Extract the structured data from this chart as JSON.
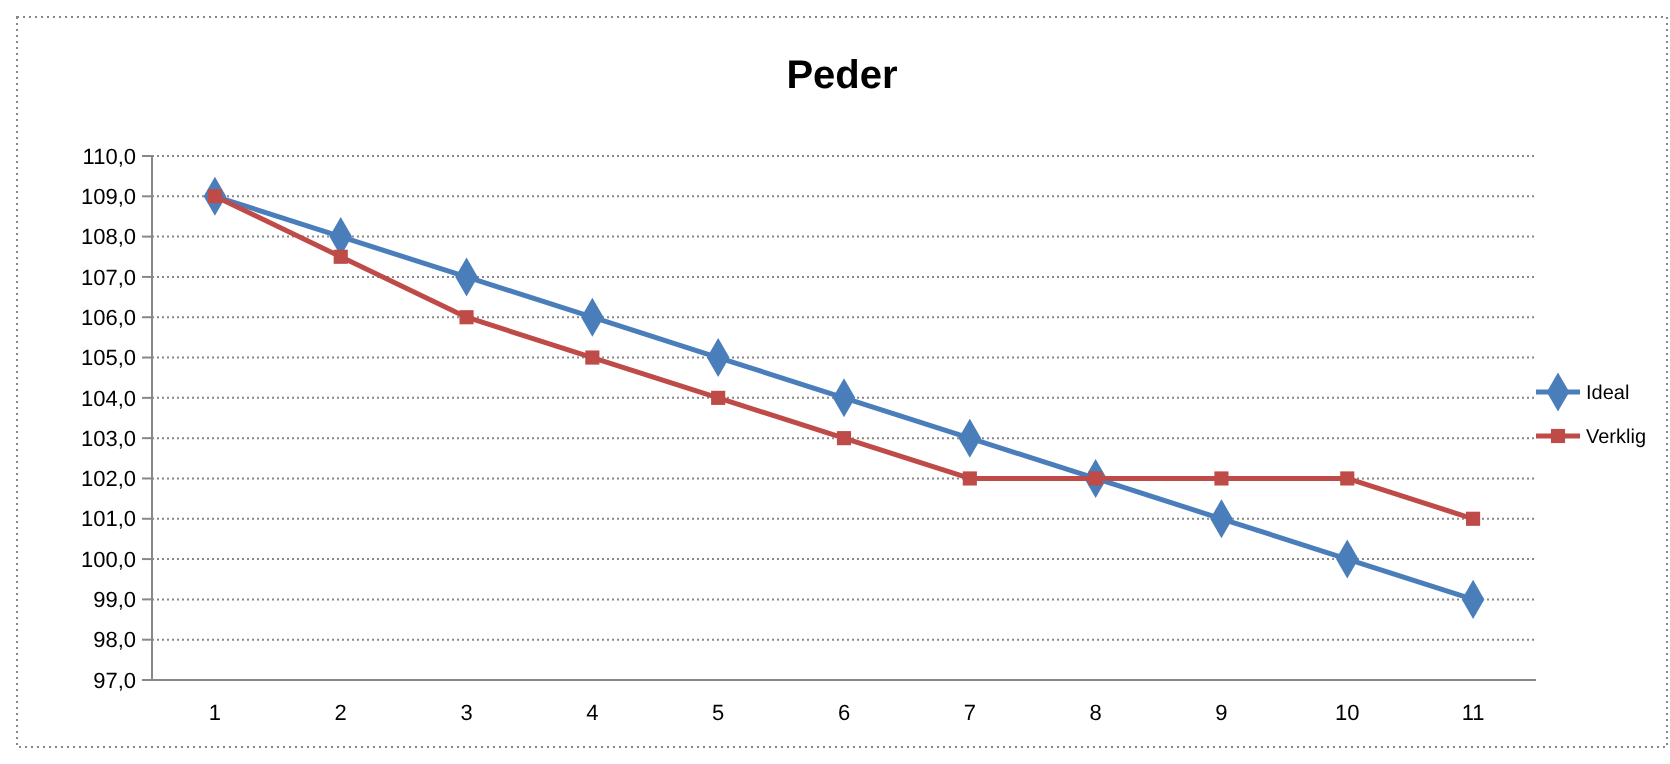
{
  "chart_data": {
    "type": "line",
    "title": "Peder",
    "categories": [
      "1",
      "2",
      "3",
      "4",
      "5",
      "6",
      "7",
      "8",
      "9",
      "10",
      "11"
    ],
    "series": [
      {
        "name": "Ideal",
        "color": "#4a7ebb",
        "marker": "diamond",
        "values": [
          109,
          108,
          107,
          106,
          105,
          104,
          103,
          102,
          101,
          100,
          99
        ]
      },
      {
        "name": "Verklig",
        "color": "#be4b48",
        "marker": "square",
        "values": [
          109,
          107.5,
          106,
          105,
          104,
          103,
          102,
          102,
          102,
          102,
          101
        ]
      }
    ],
    "ylim": [
      97,
      110
    ],
    "yticks": [
      {
        "value": 97,
        "label": "97,0"
      },
      {
        "value": 98,
        "label": "98,0"
      },
      {
        "value": 99,
        "label": "99,0"
      },
      {
        "value": 100,
        "label": "100,0"
      },
      {
        "value": 101,
        "label": "101,0"
      },
      {
        "value": 102,
        "label": "102,0"
      },
      {
        "value": 103,
        "label": "103,0"
      },
      {
        "value": 104,
        "label": "104,0"
      },
      {
        "value": 105,
        "label": "105,0"
      },
      {
        "value": 106,
        "label": "106,0"
      },
      {
        "value": 107,
        "label": "107,0"
      },
      {
        "value": 108,
        "label": "108,0"
      },
      {
        "value": 109,
        "label": "109,0"
      },
      {
        "value": 110,
        "label": "110,0"
      }
    ],
    "grid": "y",
    "legend": "right"
  }
}
